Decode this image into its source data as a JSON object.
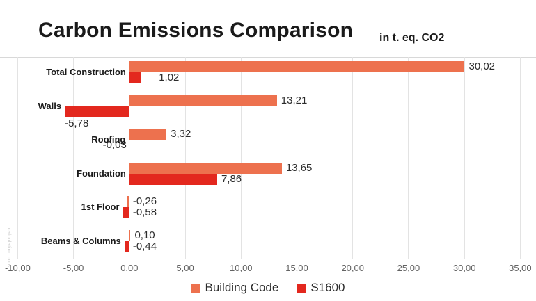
{
  "title": "Carbon Emissions Comparison",
  "subtitle": "in t. eq. CO2",
  "watermark": "calculation.com",
  "colors": {
    "building_code": "#ED714E",
    "s1600": "#E3281E",
    "gridline": "#E3E3E3",
    "axis_line": "#D8D8D8",
    "tick_text": "#636363",
    "value_text": "#2B2B2B",
    "category_text": "#1A1A1A"
  },
  "chart_data": {
    "type": "bar",
    "orientation": "horizontal",
    "title": "Carbon Emissions Comparison",
    "unit_label": "in t. eq. CO2",
    "categories": [
      "Total Construction",
      "Walls",
      "Roofing",
      "Foundation",
      "1st Floor",
      "Beams & Columns"
    ],
    "series": [
      {
        "name": "Building Code",
        "color": "#ED714E",
        "values": [
          30.02,
          13.21,
          3.32,
          13.65,
          -0.26,
          0.1
        ],
        "labels": [
          "30,02",
          "13,21",
          "3,32",
          "13,65",
          "-0,26",
          "0,10"
        ]
      },
      {
        "name": "S1600",
        "color": "#E3281E",
        "values": [
          1.02,
          -5.78,
          -0.03,
          7.86,
          -0.58,
          -0.44
        ],
        "labels": [
          "1,02",
          "-5,78",
          "-0,03",
          "7,86",
          "-0,58",
          "-0,44"
        ]
      }
    ],
    "label_positions": [
      [
        "end",
        "end",
        "end",
        "end",
        "axis-right",
        "end"
      ],
      [
        "end-far",
        "below-start",
        "axis-left",
        "end",
        "axis-right",
        "axis-right"
      ]
    ],
    "x_ticks": [
      "-10,00",
      "-5,00",
      "0,00",
      "5,00",
      "10,00",
      "15,00",
      "20,00",
      "25,00",
      "30,00",
      "35,00"
    ],
    "x_tick_values": [
      -10,
      -5,
      0,
      5,
      10,
      15,
      20,
      25,
      30,
      35
    ],
    "xlim": [
      -10,
      35
    ],
    "grid": "vertical",
    "legend_position": "bottom"
  }
}
